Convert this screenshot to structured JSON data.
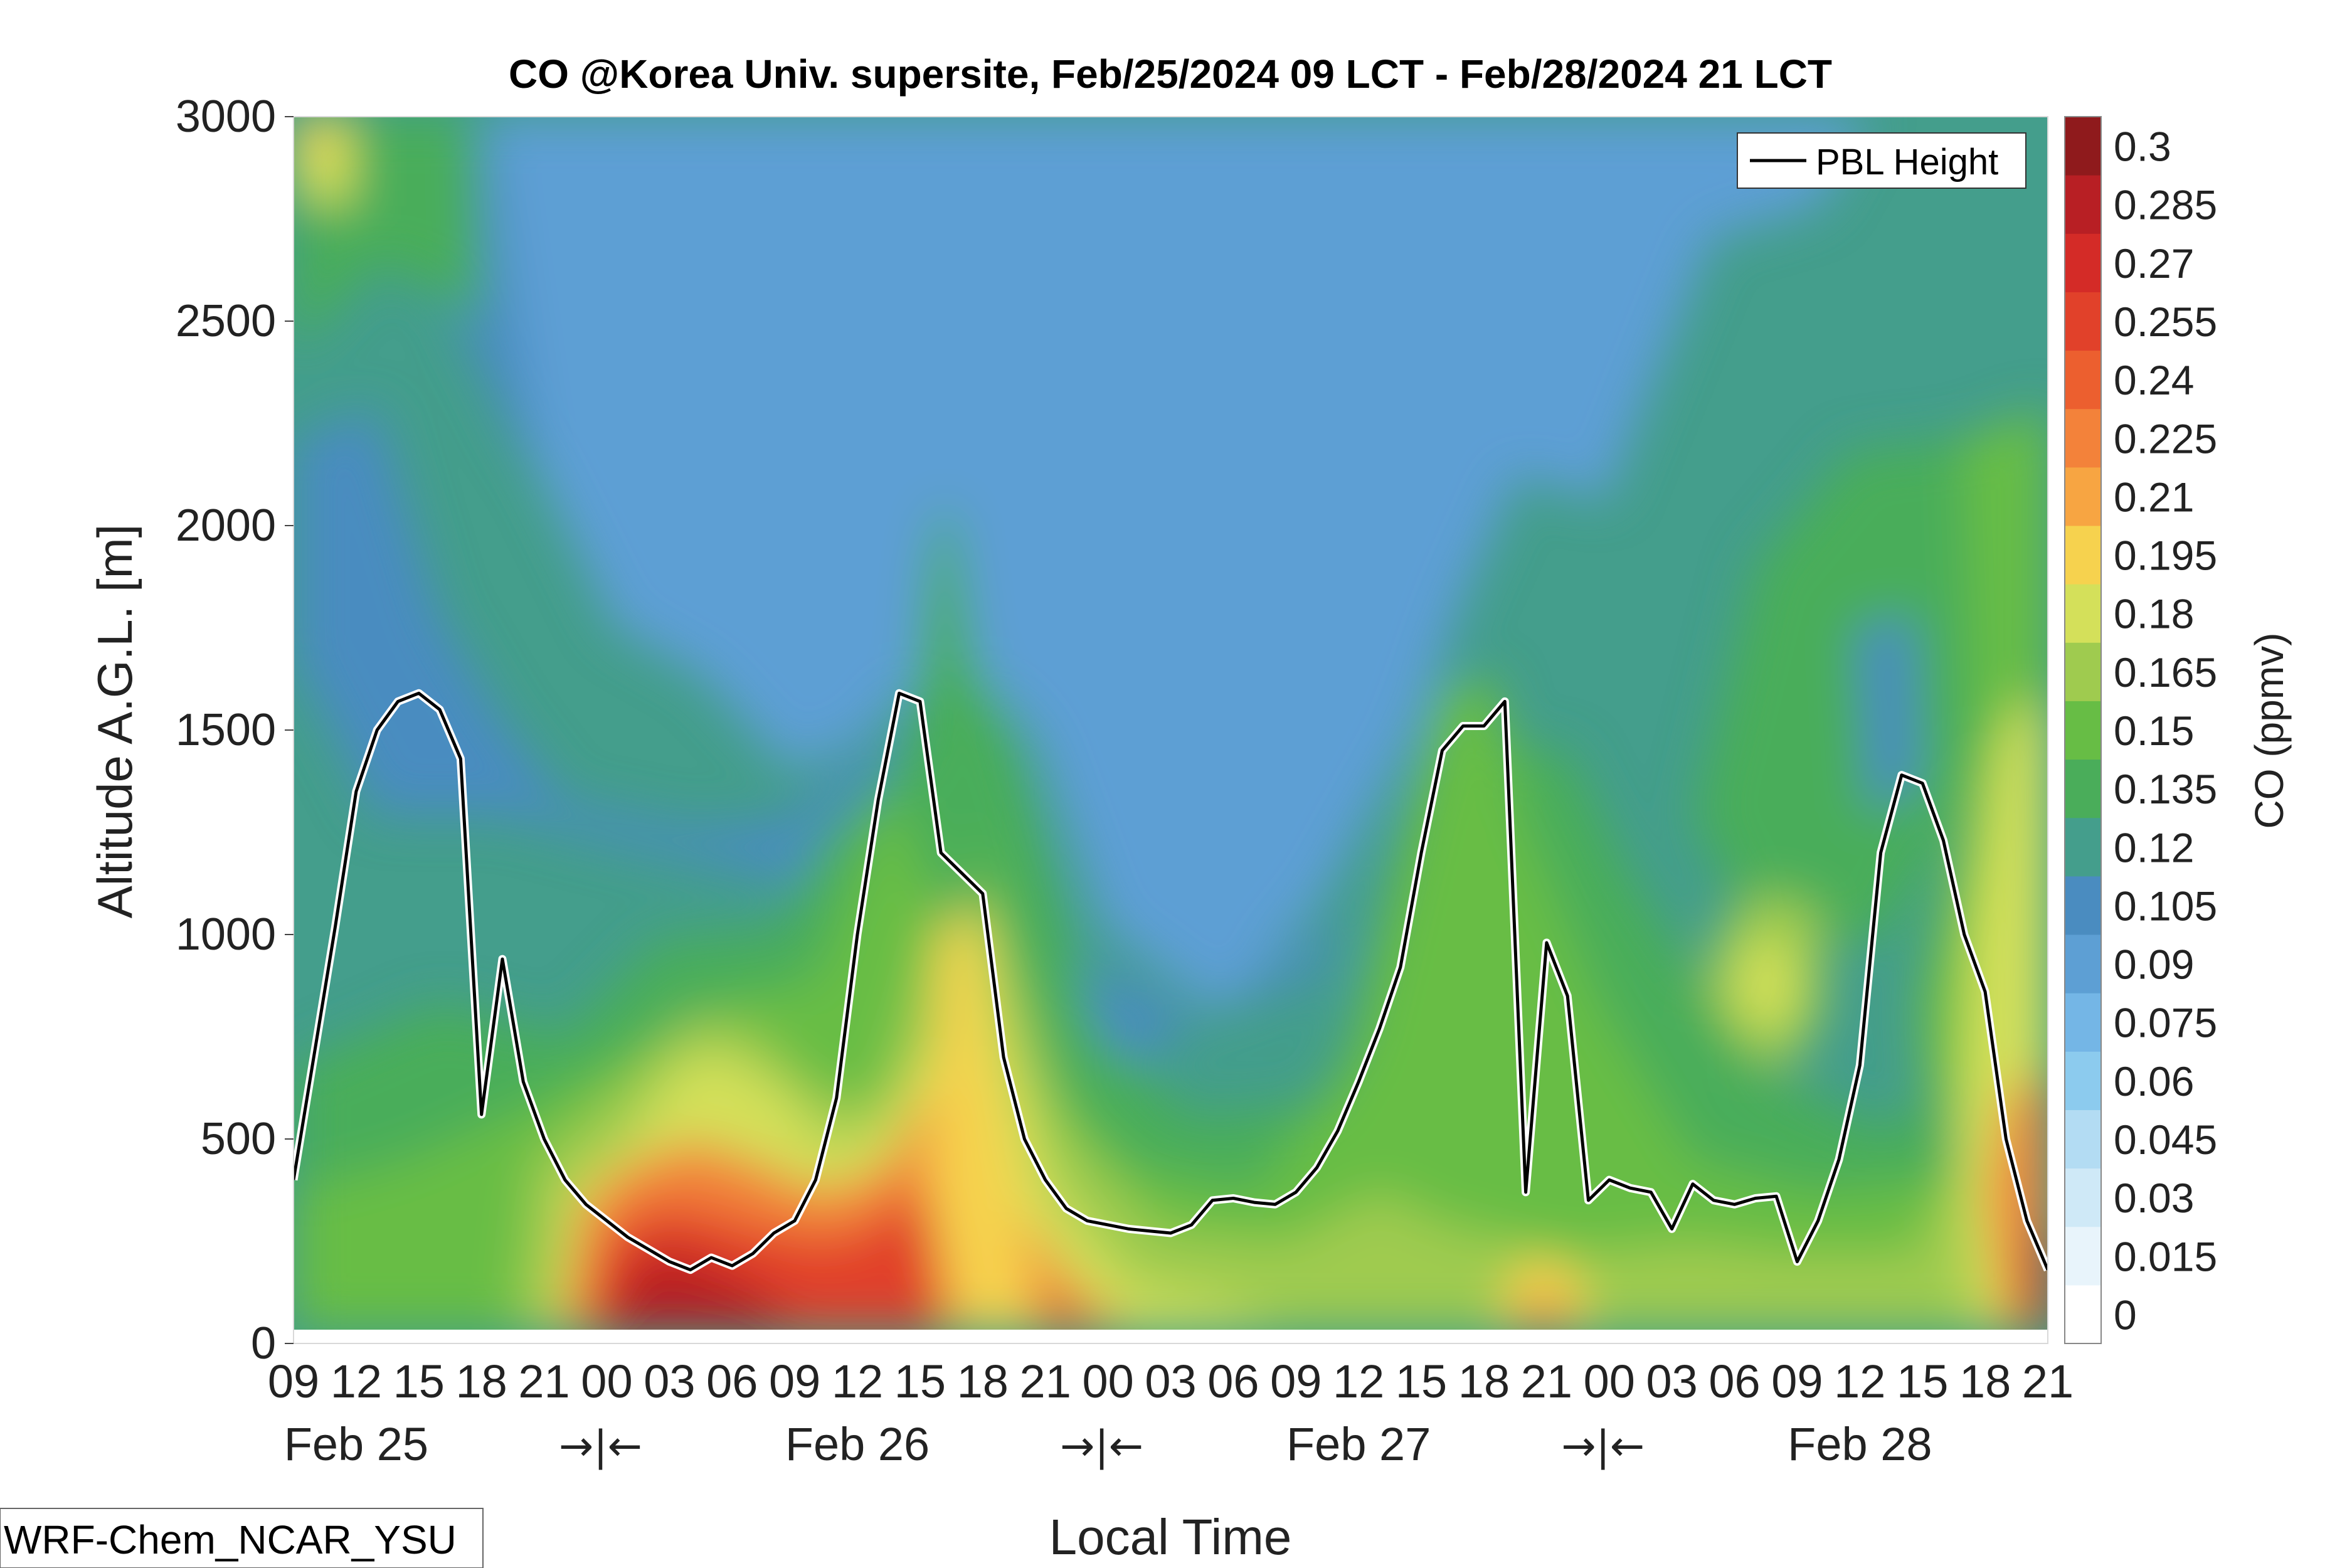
{
  "chart_data": {
    "type": "heatmap",
    "title": "CO @Korea Univ. supersite, Feb/25/2024 09 LCT - Feb/28/2024 21 LCT",
    "xlabel": "Local Time",
    "ylabel": "Altitude A.G.L. [m]",
    "colorbar_label": "CO (ppmv)",
    "ylim": [
      0,
      3000
    ],
    "y_ticks": [
      0,
      500,
      1000,
      1500,
      2000,
      2500,
      3000
    ],
    "x_range_hours": [
      0,
      84
    ],
    "hour_ticks": [
      "09",
      "12",
      "15",
      "18",
      "21",
      "00",
      "03",
      "06",
      "09",
      "12",
      "15",
      "18",
      "21",
      "00",
      "03",
      "06",
      "09",
      "12",
      "15",
      "18",
      "21",
      "00",
      "03",
      "06",
      "09",
      "12",
      "15",
      "18",
      "21"
    ],
    "date_labels": [
      {
        "text": "Feb 25",
        "hour": 3
      },
      {
        "text": "Feb 26",
        "hour": 27
      },
      {
        "text": "Feb 27",
        "hour": 51
      },
      {
        "text": "Feb 28",
        "hour": 75
      }
    ],
    "day_separators": [
      {
        "text": "→|←",
        "hour": 15
      },
      {
        "text": "→|←",
        "hour": 39
      },
      {
        "text": "→|←",
        "hour": 63
      }
    ],
    "colorbar_levels": [
      0,
      0.015,
      0.03,
      0.045,
      0.06,
      0.075,
      0.09,
      0.105,
      0.12,
      0.135,
      0.15,
      0.165,
      0.18,
      0.195,
      0.21,
      0.225,
      0.24,
      0.255,
      0.27,
      0.285,
      0.3
    ],
    "colorbar_colors": [
      "#ffffff",
      "#e8f4fb",
      "#cfe9f7",
      "#b3dcf3",
      "#8ccbee",
      "#74b6e6",
      "#5d9fd4",
      "#4a8cc0",
      "#449e8c",
      "#4aad5a",
      "#67bd45",
      "#9fcb4f",
      "#d4e05a",
      "#f6d24e",
      "#f7a542",
      "#f3823a",
      "#ec5f2f",
      "#e1412a",
      "#d42b27",
      "#b81f24",
      "#8f1a1c"
    ],
    "series": [
      {
        "name": "PBL Height",
        "x": [
          0,
          1,
          2,
          3,
          4,
          5,
          6,
          7,
          8,
          9,
          10,
          11,
          12,
          13,
          14,
          15,
          16,
          17,
          18,
          19,
          20,
          21,
          22,
          23,
          24,
          25,
          26,
          27,
          28,
          29,
          30,
          31,
          32,
          33,
          34,
          35,
          36,
          37,
          38,
          39,
          40,
          41,
          42,
          43,
          44,
          45,
          46,
          47,
          48,
          49,
          50,
          51,
          52,
          53,
          54,
          55,
          56,
          57,
          58,
          59,
          60,
          61,
          62,
          63,
          64,
          65,
          66,
          67,
          68,
          69,
          70,
          71,
          72,
          73,
          74,
          75,
          76,
          77,
          78,
          79,
          80,
          81,
          82,
          83,
          84
        ],
        "values": [
          400,
          710,
          1020,
          1350,
          1500,
          1570,
          1590,
          1550,
          1430,
          560,
          940,
          640,
          500,
          400,
          340,
          300,
          260,
          230,
          200,
          180,
          210,
          190,
          220,
          270,
          300,
          400,
          600,
          1000,
          1330,
          1590,
          1570,
          1200,
          1150,
          1100,
          700,
          500,
          400,
          330,
          300,
          290,
          280,
          275,
          270,
          290,
          350,
          355,
          345,
          340,
          370,
          430,
          520,
          640,
          770,
          920,
          1200,
          1450,
          1510,
          1510,
          1570,
          370,
          980,
          850,
          350,
          400,
          380,
          370,
          280,
          390,
          350,
          340,
          355,
          360,
          200,
          300,
          450,
          680,
          1200,
          1390,
          1370,
          1230,
          1000,
          860,
          500,
          300,
          180
        ]
      }
    ],
    "legend": {
      "placement": "top-right",
      "entries": [
        "PBL Height"
      ]
    },
    "model_label": "WRF-Chem_NCAR_YSU",
    "grid": false
  }
}
